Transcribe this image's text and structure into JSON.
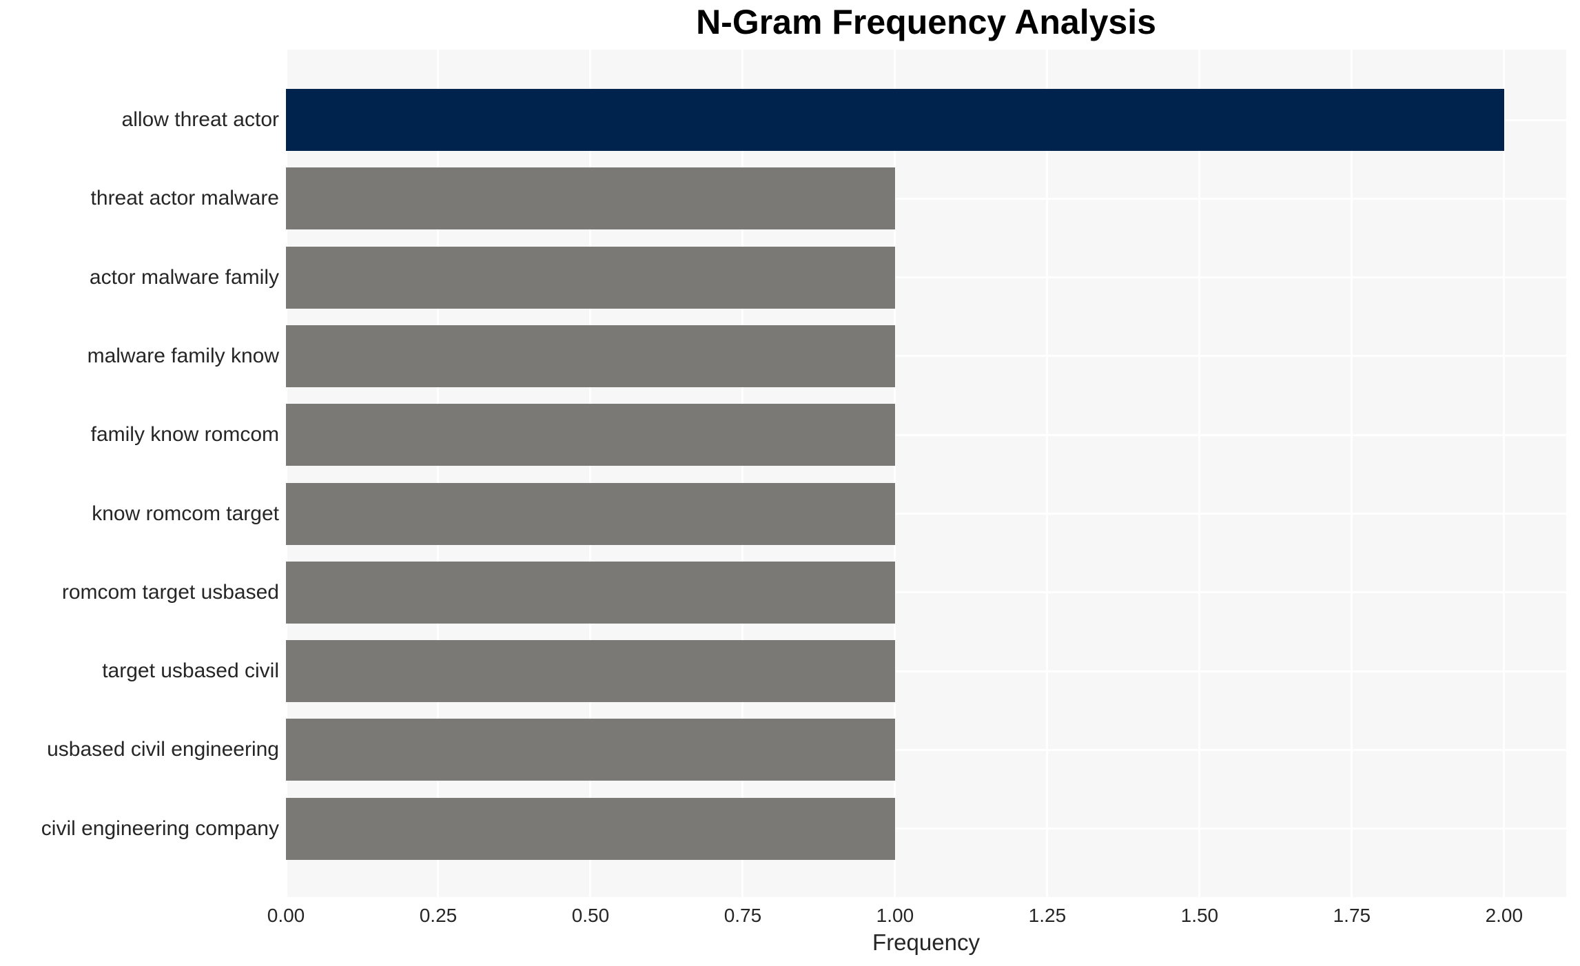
{
  "chart_data": {
    "type": "bar",
    "orientation": "horizontal",
    "title": "N-Gram Frequency Analysis",
    "xlabel": "Frequency",
    "ylabel": "",
    "categories": [
      "allow threat actor",
      "threat actor malware",
      "actor malware family",
      "malware family know",
      "family know romcom",
      "know romcom target",
      "romcom target usbased",
      "target usbased civil",
      "usbased civil engineering",
      "civil engineering company"
    ],
    "values": [
      2.0,
      1.0,
      1.0,
      1.0,
      1.0,
      1.0,
      1.0,
      1.0,
      1.0,
      1.0
    ],
    "bar_colors": [
      "#00234E",
      "#7A7976",
      "#7A7976",
      "#7A7976",
      "#7A7976",
      "#7A7976",
      "#7A7976",
      "#7A7976",
      "#7A7976",
      "#7A7976"
    ],
    "x_ticks": [
      0.0,
      0.25,
      0.5,
      0.75,
      1.0,
      1.25,
      1.5,
      1.75,
      2.0
    ],
    "x_tick_labels": [
      "0.00",
      "0.25",
      "0.50",
      "0.75",
      "1.00",
      "1.25",
      "1.50",
      "1.75",
      "2.00"
    ],
    "xlim": [
      0,
      2.102
    ],
    "grid": true,
    "legend": false,
    "colors": {
      "bar_highlight": "#00234E",
      "bar_default": "#7A7976",
      "plot_background": "#F7F7F7",
      "grid_line": "#FFFFFF",
      "tick_text": "#262626",
      "title_text": "#000000",
      "figure_background": "#FFFFFF"
    }
  }
}
